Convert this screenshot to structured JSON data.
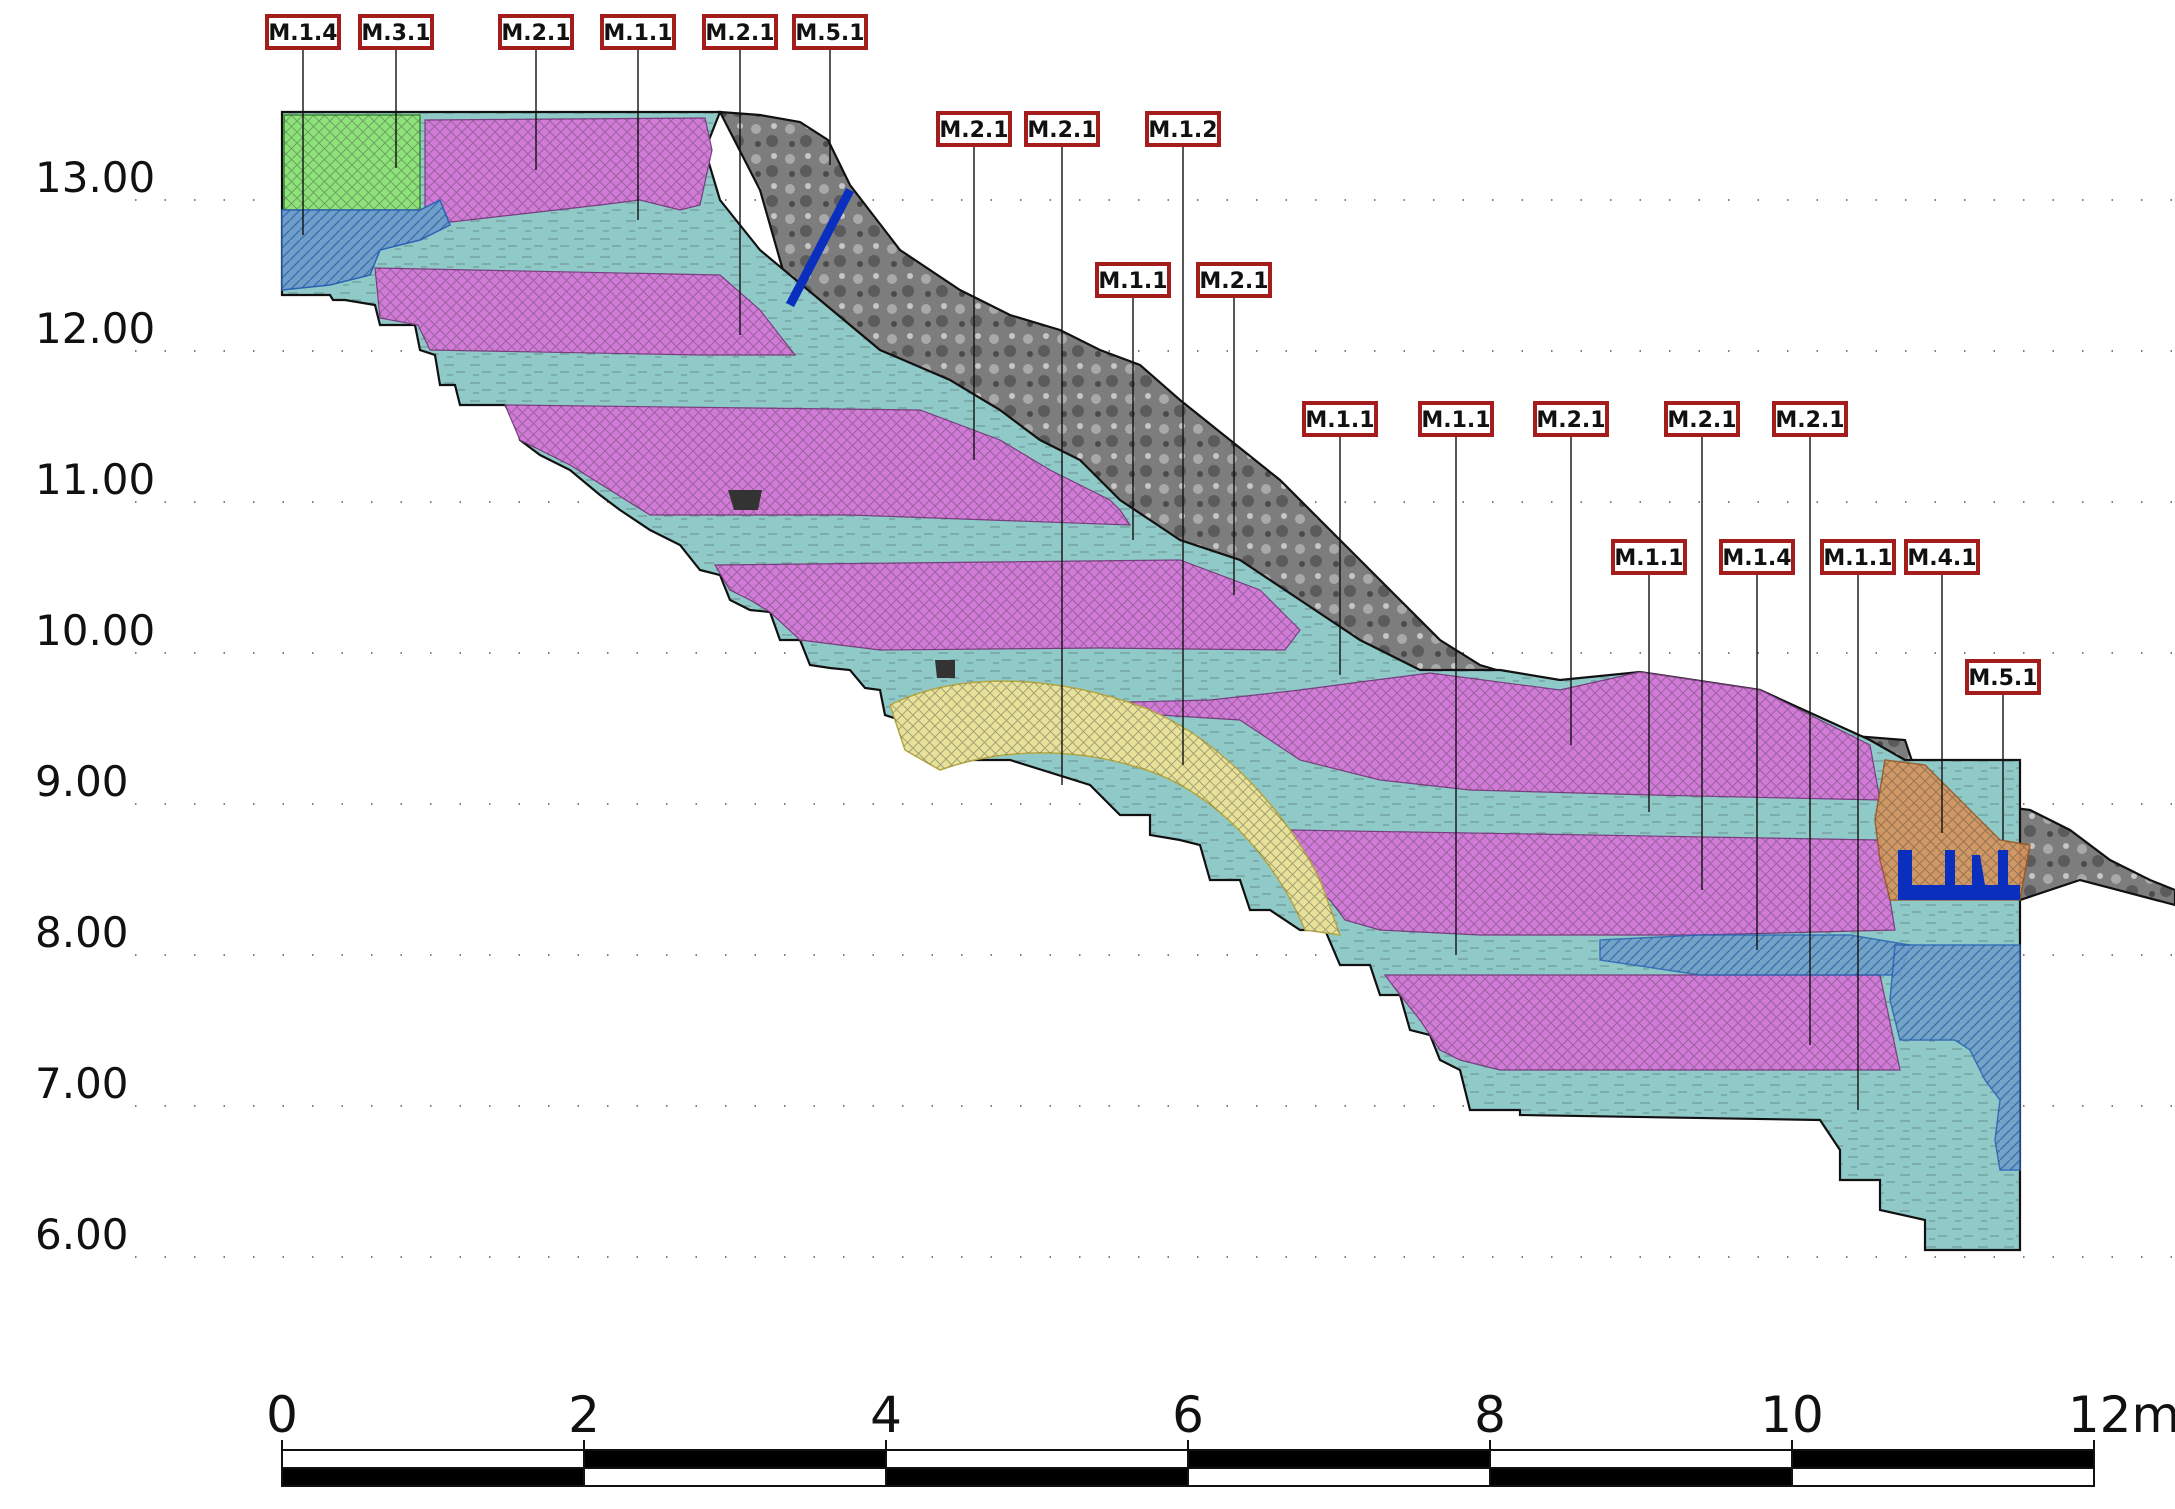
{
  "elevation_axis": {
    "unit": "m",
    "labels": [
      "13.00",
      "12.00",
      "11.00",
      "10.00",
      "9.00",
      "8.00",
      "7.00",
      "6.00"
    ],
    "values": [
      13,
      12,
      11,
      10,
      9,
      8,
      7,
      6
    ]
  },
  "scale_bar": {
    "labels": [
      "0",
      "2",
      "4",
      "6",
      "8",
      "10",
      "12m"
    ],
    "values": [
      0,
      2,
      4,
      6,
      8,
      10,
      12
    ],
    "unit": "m"
  },
  "layer_colors": {
    "M.2.1": "#d27ad8",
    "M.1.1": "#8fc9c8",
    "M.1.4": "#6f9ec9",
    "M.3.1": "#8ee27a",
    "M.5.1": "#0a2fbf",
    "M.1.2": "#e8e199",
    "M.4.1": "#d8935a",
    "rock": "#8a8a8a",
    "tag_border": "#a51c1c"
  },
  "tags": [
    {
      "code": "M.1.4"
    },
    {
      "code": "M.3.1"
    },
    {
      "code": "M.2.1"
    },
    {
      "code": "M.1.1"
    },
    {
      "code": "M.2.1"
    },
    {
      "code": "M.5.1"
    },
    {
      "code": "M.2.1"
    },
    {
      "code": "M.2.1"
    },
    {
      "code": "M.1.2"
    },
    {
      "code": "M.1.1"
    },
    {
      "code": "M.2.1"
    },
    {
      "code": "M.1.1"
    },
    {
      "code": "M.1.1"
    },
    {
      "code": "M.2.1"
    },
    {
      "code": "M.2.1"
    },
    {
      "code": "M.2.1"
    },
    {
      "code": "M.1.1"
    },
    {
      "code": "M.1.4"
    },
    {
      "code": "M.1.1"
    },
    {
      "code": "M.4.1"
    },
    {
      "code": "M.5.1"
    }
  ]
}
